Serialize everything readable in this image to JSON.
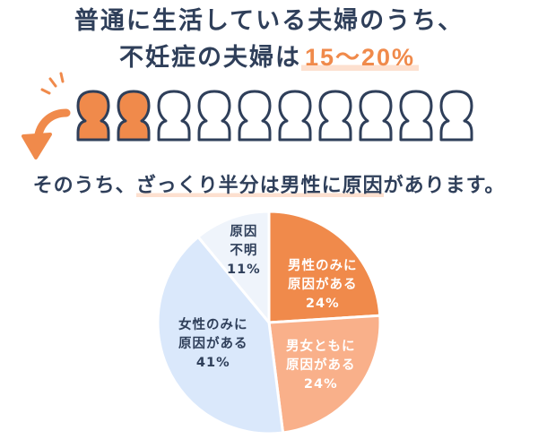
{
  "headline": {
    "line1": "普通に生活している夫婦のうち、",
    "line2_prefix": "不妊症の夫婦は",
    "line2_value": "15〜20%"
  },
  "people_row": {
    "highlighted": 2,
    "total": 10,
    "highlight_color": "#f08a4b",
    "outline_color": "#2f3f5a"
  },
  "subline": {
    "prefix": "そのうち、",
    "highlight": "ざっくり半分は男性に原因",
    "suffix": "があります。"
  },
  "colors": {
    "text": "#2f3f5a",
    "accent": "#f08a4b"
  },
  "chart_data": {
    "type": "pie",
    "unit": "%",
    "slices": [
      {
        "label": "男性のみに\n原因がある",
        "value": 24,
        "value_text": "24%",
        "color": "#f08a4b",
        "text_color": "#ffffff"
      },
      {
        "label": "男女ともに\n原因がある",
        "value": 24,
        "value_text": "24%",
        "color": "#f9b08a",
        "text_color": "#ffffff"
      },
      {
        "label": "女性のみに\n原因がある",
        "value": 41,
        "value_text": "41%",
        "color": "#dae8fb",
        "text_color": "#2f3f5a"
      },
      {
        "label": "原因\n不明",
        "value": 11,
        "value_text": "11%",
        "color": "#eff4fb",
        "text_color": "#2f3f5a"
      }
    ]
  }
}
